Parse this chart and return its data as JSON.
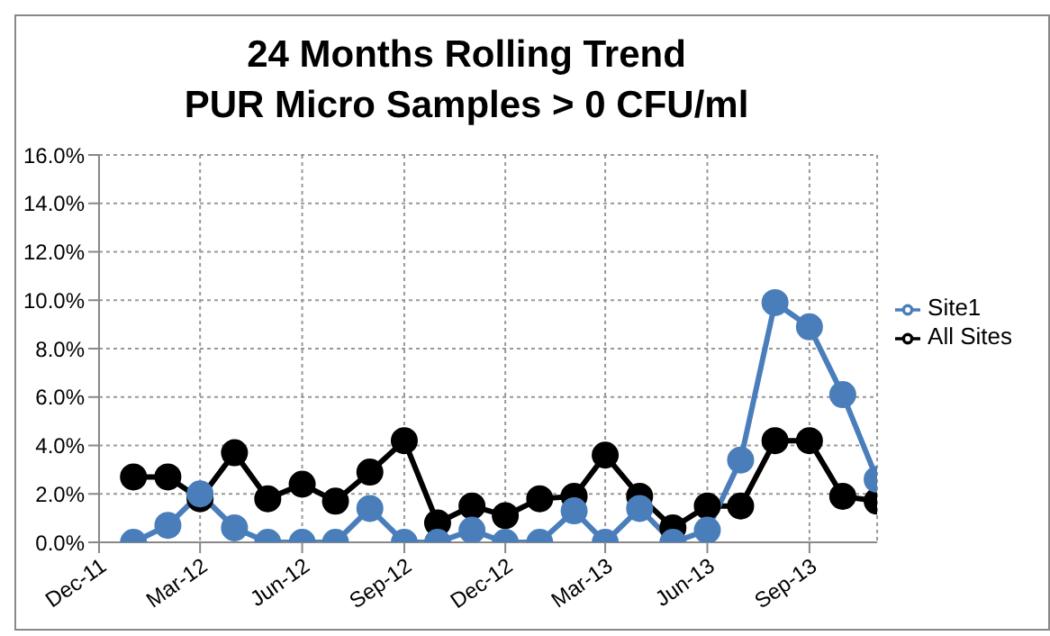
{
  "chart_data": {
    "type": "line",
    "title": "24 Months Rolling Trend",
    "subtitle": "PUR Micro Samples > 0 CFU/ml",
    "x": [
      "2012-01",
      "2012-02",
      "2012-03",
      "2012-04",
      "2012-05",
      "2012-06",
      "2012-07",
      "2012-08",
      "2012-09",
      "2012-10",
      "2012-11",
      "2012-12",
      "2013-01",
      "2013-02",
      "2013-03",
      "2013-04",
      "2013-05",
      "2013-06",
      "2013-07",
      "2013-08",
      "2013-09",
      "2013-10",
      "2013-11"
    ],
    "series": [
      {
        "name": "Site1",
        "color": "#4a7ebb",
        "values": [
          0,
          0.7,
          2.0,
          0.6,
          0,
          0,
          0,
          1.4,
          0,
          0,
          0.5,
          0,
          0,
          1.3,
          0,
          1.4,
          0,
          0.5,
          3.4,
          9.9,
          8.9,
          6.1,
          2.6
        ]
      },
      {
        "name": "All Sites",
        "color": "#000000",
        "values": [
          2.7,
          2.7,
          1.8,
          3.7,
          1.8,
          2.4,
          1.7,
          2.9,
          4.2,
          0.8,
          1.5,
          1.1,
          1.8,
          1.9,
          3.6,
          1.9,
          0.6,
          1.5,
          1.5,
          4.2,
          4.2,
          1.9,
          1.7
        ]
      }
    ],
    "xlim": [
      "2011-12",
      "2013-11"
    ],
    "xticks": [
      {
        "value": "2011-12",
        "label": "Dec-11"
      },
      {
        "value": "2012-03",
        "label": "Mar-12"
      },
      {
        "value": "2012-06",
        "label": "Jun-12"
      },
      {
        "value": "2012-09",
        "label": "Sep-12"
      },
      {
        "value": "2012-12",
        "label": "Dec-12"
      },
      {
        "value": "2013-03",
        "label": "Mar-13"
      },
      {
        "value": "2013-06",
        "label": "Jun-13"
      },
      {
        "value": "2013-09",
        "label": "Sep-13"
      }
    ],
    "ylim": [
      0,
      16
    ],
    "yticks": [
      {
        "value": 0,
        "label": "0.0%"
      },
      {
        "value": 2,
        "label": "2.0%"
      },
      {
        "value": 4,
        "label": "4.0%"
      },
      {
        "value": 6,
        "label": "6.0%"
      },
      {
        "value": 8,
        "label": "8.0%"
      },
      {
        "value": 10,
        "label": "10.0%"
      },
      {
        "value": 12,
        "label": "12.0%"
      },
      {
        "value": 14,
        "label": "14.0%"
      },
      {
        "value": 16,
        "label": "16.0%"
      }
    ],
    "grid": true,
    "legend": "right",
    "marker": "circle",
    "line_style": "solid"
  }
}
